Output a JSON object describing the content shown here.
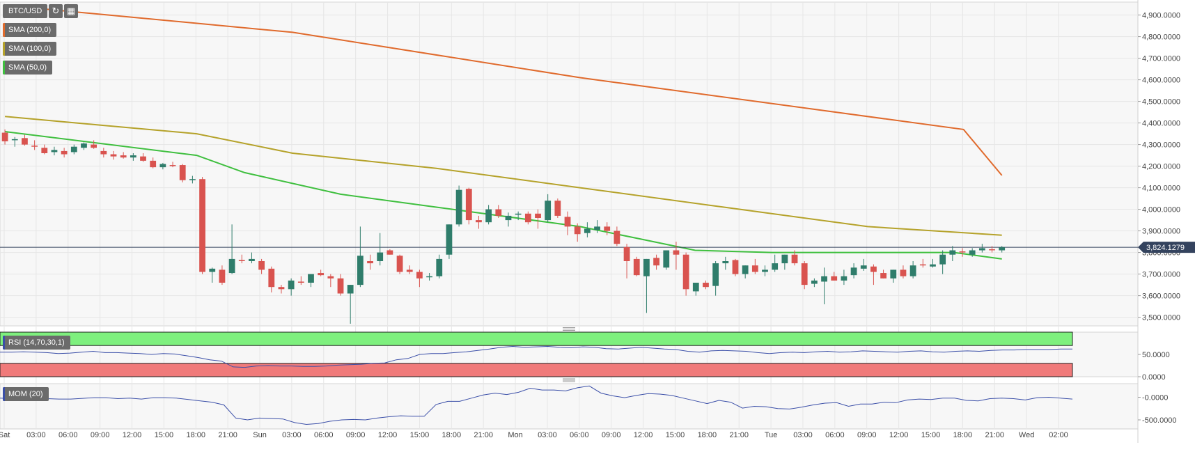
{
  "header": {
    "symbol": "BTC/USD",
    "reload_icon": "reload-icon",
    "calendar_icon": "calendar-icon"
  },
  "indicators": {
    "sma200": {
      "label": "SMA (200,0)",
      "color": "#e06a2c"
    },
    "sma100": {
      "label": "SMA (100,0)",
      "color": "#b5a22a"
    },
    "sma50": {
      "label": "SMA (50,0)",
      "color": "#3fbf3f"
    },
    "rsi": {
      "label": "RSI (14,70,30,1)",
      "color": "#3b4fa8"
    },
    "mom": {
      "label": "MOM (20)",
      "color": "#3b4fa8"
    }
  },
  "colors": {
    "up": "#2f7d6b",
    "down": "#d9534f",
    "line": "#3b4fa8",
    "overbought": "#7ef07e",
    "oversold": "#f07a7a",
    "price_line": "#34435e"
  },
  "chart_data": [
    {
      "type": "candlestick",
      "title": "BTC/USD",
      "y_ticks": [
        "4,900.0000",
        "4,800.0000",
        "4,700.0000",
        "4,600.0000",
        "4,500.0000",
        "4,400.0000",
        "4,300.0000",
        "4,200.0000",
        "4,100.0000",
        "4,000.0000",
        "3,900.0000",
        "3,800.0000",
        "3,700.0000",
        "3,600.0000",
        "3,500.0000"
      ],
      "ylim": [
        3460,
        4960
      ],
      "current_price": 3824.1279,
      "current_price_label": "3,824.1279",
      "x_labels": [
        "Sat",
        "03:00",
        "06:00",
        "09:00",
        "12:00",
        "15:00",
        "18:00",
        "21:00",
        "Sun",
        "03:00",
        "06:00",
        "09:00",
        "12:00",
        "15:00",
        "18:00",
        "21:00",
        "Mon",
        "03:00",
        "06:00",
        "09:00",
        "12:00",
        "15:00",
        "18:00",
        "21:00",
        "Tue",
        "03:00",
        "06:00",
        "09:00",
        "12:00",
        "15:00",
        "18:00",
        "21:00",
        "Wed",
        "02:00"
      ],
      "candles": [
        [
          4355,
          4370,
          4300,
          4315
        ],
        [
          4320,
          4335,
          4290,
          4325
        ],
        [
          4330,
          4345,
          4295,
          4300
        ],
        [
          4295,
          4320,
          4275,
          4290
        ],
        [
          4285,
          4300,
          4255,
          4260
        ],
        [
          4265,
          4290,
          4250,
          4275
        ],
        [
          4270,
          4285,
          4240,
          4255
        ],
        [
          4265,
          4300,
          4255,
          4290
        ],
        [
          4285,
          4310,
          4275,
          4305
        ],
        [
          4300,
          4320,
          4280,
          4285
        ],
        [
          4270,
          4285,
          4240,
          4255
        ],
        [
          4255,
          4270,
          4230,
          4245
        ],
        [
          4250,
          4265,
          4235,
          4240
        ],
        [
          4240,
          4260,
          4225,
          4250
        ],
        [
          4245,
          4260,
          4220,
          4225
        ],
        [
          4225,
          4240,
          4190,
          4195
        ],
        [
          4195,
          4215,
          4185,
          4210
        ],
        [
          4205,
          4220,
          4195,
          4200
        ],
        [
          4205,
          4210,
          4125,
          4135
        ],
        [
          4135,
          4155,
          4120,
          4140
        ],
        [
          4140,
          4150,
          3700,
          3710
        ],
        [
          3710,
          3730,
          3660,
          3725
        ],
        [
          3720,
          3740,
          3650,
          3660
        ],
        [
          3705,
          3930,
          3700,
          3770
        ],
        [
          3765,
          3790,
          3750,
          3760
        ],
        [
          3760,
          3800,
          3750,
          3770
        ],
        [
          3760,
          3770,
          3700,
          3720
        ],
        [
          3725,
          3735,
          3615,
          3640
        ],
        [
          3640,
          3650,
          3610,
          3630
        ],
        [
          3630,
          3680,
          3600,
          3670
        ],
        [
          3665,
          3690,
          3650,
          3660
        ],
        [
          3660,
          3700,
          3640,
          3700
        ],
        [
          3705,
          3720,
          3690,
          3695
        ],
        [
          3690,
          3700,
          3640,
          3680
        ],
        [
          3680,
          3700,
          3600,
          3610
        ],
        [
          3610,
          3650,
          3470,
          3650
        ],
        [
          3650,
          3920,
          3640,
          3785
        ],
        [
          3760,
          3790,
          3720,
          3750
        ],
        [
          3760,
          3890,
          3740,
          3800
        ],
        [
          3810,
          3815,
          3790,
          3790
        ],
        [
          3785,
          3790,
          3700,
          3710
        ],
        [
          3720,
          3740,
          3700,
          3710
        ],
        [
          3710,
          3720,
          3640,
          3680
        ],
        [
          3685,
          3705,
          3670,
          3690
        ],
        [
          3690,
          3790,
          3680,
          3770
        ],
        [
          3790,
          3930,
          3770,
          3930
        ],
        [
          3930,
          4110,
          3920,
          4090
        ],
        [
          4095,
          4100,
          3930,
          3950
        ],
        [
          3950,
          3970,
          3910,
          3940
        ],
        [
          3940,
          4020,
          3930,
          4000
        ],
        [
          4000,
          4020,
          3960,
          3970
        ],
        [
          3950,
          3985,
          3920,
          3970
        ],
        [
          3975,
          3990,
          3950,
          3980
        ],
        [
          3980,
          3990,
          3930,
          3940
        ],
        [
          3980,
          4000,
          3910,
          3960
        ],
        [
          3950,
          4070,
          3940,
          4040
        ],
        [
          4040,
          4050,
          3960,
          3970
        ],
        [
          3965,
          3990,
          3880,
          3920
        ],
        [
          3920,
          3935,
          3850,
          3885
        ],
        [
          3890,
          3940,
          3870,
          3910
        ],
        [
          3905,
          3950,
          3890,
          3920
        ],
        [
          3920,
          3940,
          3880,
          3900
        ],
        [
          3900,
          3920,
          3830,
          3840
        ],
        [
          3825,
          3840,
          3680,
          3760
        ],
        [
          3770,
          3780,
          3690,
          3695
        ],
        [
          3690,
          3770,
          3520,
          3770
        ],
        [
          3775,
          3790,
          3720,
          3740
        ],
        [
          3730,
          3800,
          3720,
          3810
        ],
        [
          3810,
          3850,
          3720,
          3790
        ],
        [
          3790,
          3800,
          3600,
          3630
        ],
        [
          3620,
          3660,
          3600,
          3660
        ],
        [
          3660,
          3670,
          3630,
          3640
        ],
        [
          3645,
          3760,
          3600,
          3750
        ],
        [
          3750,
          3780,
          3720,
          3760
        ],
        [
          3765,
          3770,
          3690,
          3700
        ],
        [
          3700,
          3740,
          3680,
          3740
        ],
        [
          3740,
          3770,
          3700,
          3710
        ],
        [
          3710,
          3740,
          3690,
          3720
        ],
        [
          3720,
          3790,
          3710,
          3750
        ],
        [
          3750,
          3790,
          3720,
          3790
        ],
        [
          3790,
          3810,
          3740,
          3750
        ],
        [
          3750,
          3760,
          3630,
          3650
        ],
        [
          3655,
          3680,
          3640,
          3670
        ],
        [
          3665,
          3730,
          3560,
          3690
        ],
        [
          3690,
          3710,
          3670,
          3670
        ],
        [
          3670,
          3720,
          3650,
          3690
        ],
        [
          3695,
          3750,
          3680,
          3730
        ],
        [
          3725,
          3770,
          3715,
          3740
        ],
        [
          3735,
          3745,
          3650,
          3710
        ],
        [
          3705,
          3720,
          3680,
          3680
        ],
        [
          3680,
          3720,
          3660,
          3720
        ],
        [
          3720,
          3740,
          3680,
          3690
        ],
        [
          3690,
          3760,
          3680,
          3740
        ],
        [
          3745,
          3770,
          3730,
          3740
        ],
        [
          3735,
          3770,
          3730,
          3745
        ],
        [
          3745,
          3810,
          3700,
          3790
        ],
        [
          3790,
          3830,
          3760,
          3810
        ],
        [
          3805,
          3820,
          3780,
          3800
        ],
        [
          3790,
          3820,
          3780,
          3810
        ],
        [
          3810,
          3840,
          3800,
          3820
        ],
        [
          3815,
          3830,
          3800,
          3812
        ],
        [
          3810,
          3830,
          3800,
          3824
        ]
      ],
      "sma200": {
        "name": "SMA (200,0)",
        "points": [
          [
            0,
            4945
          ],
          [
            30,
            4820
          ],
          [
            60,
            4610
          ],
          [
            100,
            4370
          ],
          [
            104,
            4157
          ]
        ]
      },
      "sma100": {
        "name": "SMA (100,0)",
        "points": [
          [
            0,
            4430
          ],
          [
            10,
            4390
          ],
          [
            20,
            4350
          ],
          [
            30,
            4260
          ],
          [
            45,
            4190
          ],
          [
            60,
            4100
          ],
          [
            75,
            4010
          ],
          [
            90,
            3920
          ],
          [
            104,
            3880
          ]
        ]
      },
      "sma50": {
        "name": "SMA (50,0)",
        "points": [
          [
            0,
            4360
          ],
          [
            20,
            4250
          ],
          [
            25,
            4170
          ],
          [
            35,
            4070
          ],
          [
            45,
            4010
          ],
          [
            60,
            3920
          ],
          [
            66,
            3865
          ],
          [
            72,
            3810
          ],
          [
            80,
            3800
          ],
          [
            90,
            3800
          ],
          [
            99,
            3800
          ],
          [
            104,
            3770
          ]
        ]
      }
    },
    {
      "type": "line",
      "title": "RSI (14,70,30,1)",
      "y_ticks": [
        "50.0000",
        "0.0000"
      ],
      "ylim": [
        0,
        100
      ],
      "zones": {
        "overbought": [
          70,
          100
        ],
        "oversold": [
          0,
          30
        ]
      },
      "values": [
        55,
        55,
        56,
        55,
        54,
        52,
        53,
        55,
        57,
        54,
        54,
        53,
        52,
        50,
        52,
        51,
        47,
        43,
        38,
        35,
        22,
        21,
        24,
        25,
        24,
        24,
        23,
        23,
        24,
        26,
        27,
        28,
        30,
        31,
        38,
        41,
        50,
        52,
        52,
        54,
        56,
        59,
        62,
        66,
        68,
        66,
        67,
        68,
        66,
        65,
        67,
        66,
        63,
        62,
        64,
        66,
        64,
        62,
        61,
        57,
        55,
        58,
        59,
        58,
        57,
        54,
        52,
        54,
        55,
        54,
        56,
        57,
        55,
        56,
        58,
        57,
        56,
        55,
        57,
        58,
        56,
        55,
        57,
        58,
        57,
        59,
        60,
        60,
        61,
        61,
        61,
        62,
        62
      ]
    },
    {
      "type": "line",
      "title": "MOM (20)",
      "y_ticks": [
        "-0.0000",
        "-500.0000"
      ],
      "ylim": [
        -700,
        300
      ],
      "values": [
        -20,
        -30,
        -25,
        -20,
        -30,
        -40,
        -40,
        -25,
        -10,
        -10,
        -30,
        -20,
        -40,
        -10,
        -10,
        -20,
        -50,
        -80,
        -110,
        -170,
        -460,
        -500,
        -460,
        -470,
        -480,
        -560,
        -600,
        -580,
        -530,
        -500,
        -490,
        -500,
        -460,
        -430,
        -410,
        -420,
        -420,
        -160,
        -90,
        -90,
        -20,
        50,
        90,
        60,
        110,
        200,
        160,
        160,
        140,
        210,
        250,
        90,
        30,
        -10,
        40,
        80,
        70,
        40,
        -20,
        -80,
        -140,
        -70,
        -110,
        -240,
        -200,
        -210,
        -250,
        -260,
        -220,
        -170,
        -130,
        -120,
        -200,
        -150,
        -150,
        -110,
        -120,
        -60,
        -40,
        -50,
        -20,
        -20,
        -70,
        -80,
        -30,
        -20,
        -30,
        -60,
        -10,
        0,
        -20,
        -40
      ]
    }
  ]
}
